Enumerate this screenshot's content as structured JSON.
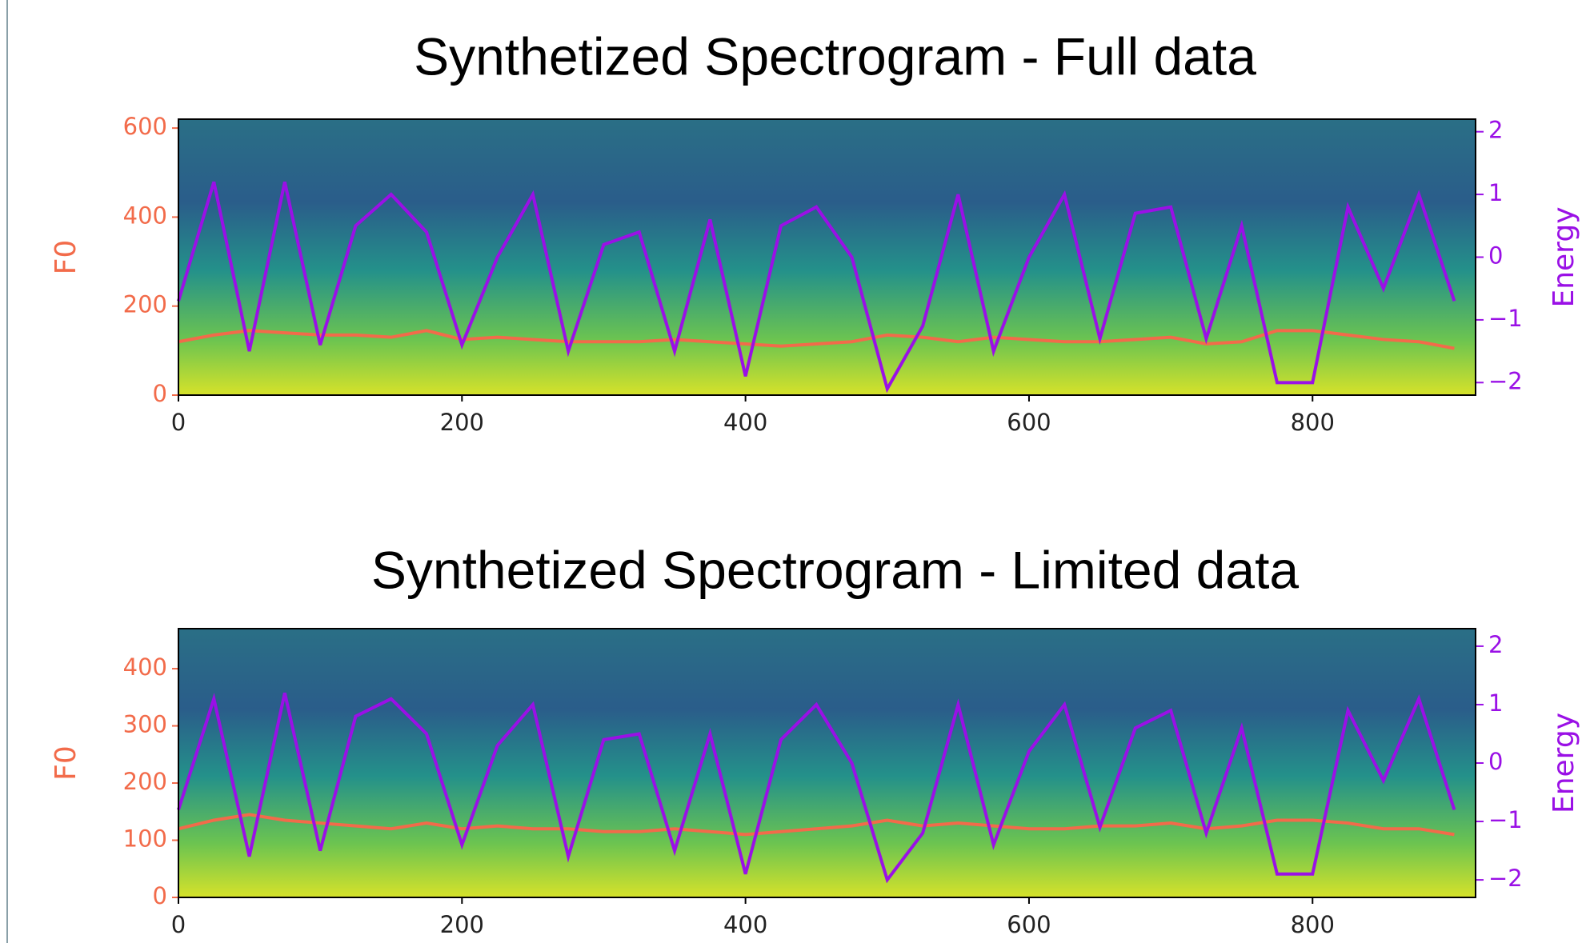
{
  "chart_data": [
    {
      "type": "line",
      "title": "Synthetized Spectrogram - Full data",
      "ylabel": "F0",
      "y2label": "Energy",
      "x": [
        0,
        25,
        50,
        75,
        100,
        125,
        150,
        175,
        200,
        225,
        250,
        275,
        300,
        325,
        350,
        375,
        400,
        425,
        450,
        475,
        500,
        525,
        550,
        575,
        600,
        625,
        650,
        675,
        700,
        725,
        750,
        775,
        800,
        825,
        850,
        875,
        900
      ],
      "xlim": [
        0,
        915
      ],
      "xticks": [
        0,
        200,
        400,
        600,
        800
      ],
      "ylim": [
        0,
        620
      ],
      "yticks": [
        0,
        200,
        400,
        600
      ],
      "y2lim": [
        -2.2,
        2.2
      ],
      "y2ticks": [
        {
          "value": -2,
          "label": "−2"
        },
        {
          "value": -1,
          "label": "−1"
        },
        0,
        1,
        2
      ],
      "series": [
        {
          "name": "F0",
          "color": "#f26b4a",
          "values": [
            120,
            135,
            145,
            140,
            135,
            135,
            130,
            145,
            125,
            130,
            125,
            120,
            120,
            120,
            125,
            120,
            115,
            110,
            115,
            120,
            135,
            130,
            120,
            130,
            125,
            120,
            120,
            125,
            130,
            115,
            120,
            145,
            145,
            135,
            125,
            120,
            105
          ]
        },
        {
          "name": "Energy",
          "color": "#9a10e6",
          "axis": "y2",
          "values": [
            -0.7,
            1.2,
            -1.5,
            1.2,
            -1.4,
            0.5,
            1.0,
            0.4,
            -1.4,
            0.0,
            1.0,
            -1.5,
            0.2,
            0.4,
            -1.5,
            0.6,
            -1.9,
            0.5,
            0.8,
            0.0,
            -2.1,
            -1.1,
            1.0,
            -1.5,
            0.0,
            1.0,
            -1.3,
            0.7,
            0.8,
            -1.3,
            0.5,
            -2.0,
            -2.0,
            0.8,
            -0.5,
            1.0,
            -0.7
          ]
        }
      ]
    },
    {
      "type": "line",
      "title": "Synthetized Spectrogram - Limited data",
      "ylabel": "F0",
      "y2label": "Energy",
      "x": [
        0,
        25,
        50,
        75,
        100,
        125,
        150,
        175,
        200,
        225,
        250,
        275,
        300,
        325,
        350,
        375,
        400,
        425,
        450,
        475,
        500,
        525,
        550,
        575,
        600,
        625,
        650,
        675,
        700,
        725,
        750,
        775,
        800,
        825,
        850,
        875,
        900
      ],
      "xlim": [
        0,
        915
      ],
      "xticks": [
        0,
        200,
        400,
        600,
        800
      ],
      "ylim": [
        0,
        470
      ],
      "yticks": [
        0,
        100,
        200,
        300,
        400
      ],
      "y2lim": [
        -2.3,
        2.3
      ],
      "y2ticks": [
        {
          "value": -2,
          "label": "−2"
        },
        {
          "value": -1,
          "label": "−1"
        },
        0,
        1,
        2
      ],
      "series": [
        {
          "name": "F0",
          "color": "#f26b4a",
          "values": [
            120,
            135,
            145,
            135,
            130,
            125,
            120,
            130,
            120,
            125,
            120,
            120,
            115,
            115,
            120,
            115,
            110,
            115,
            120,
            125,
            135,
            125,
            130,
            125,
            120,
            120,
            125,
            125,
            130,
            120,
            125,
            135,
            135,
            130,
            120,
            120,
            110
          ]
        },
        {
          "name": "Energy",
          "color": "#9a10e6",
          "axis": "y2",
          "values": [
            -0.8,
            1.1,
            -1.6,
            1.2,
            -1.5,
            0.8,
            1.1,
            0.5,
            -1.4,
            0.3,
            1.0,
            -1.6,
            0.4,
            0.5,
            -1.5,
            0.5,
            -1.9,
            0.4,
            1.0,
            0.0,
            -2.0,
            -1.2,
            1.0,
            -1.4,
            0.2,
            1.0,
            -1.1,
            0.6,
            0.9,
            -1.2,
            0.6,
            -1.9,
            -1.9,
            0.9,
            -0.3,
            1.1,
            -0.8
          ]
        }
      ]
    }
  ]
}
